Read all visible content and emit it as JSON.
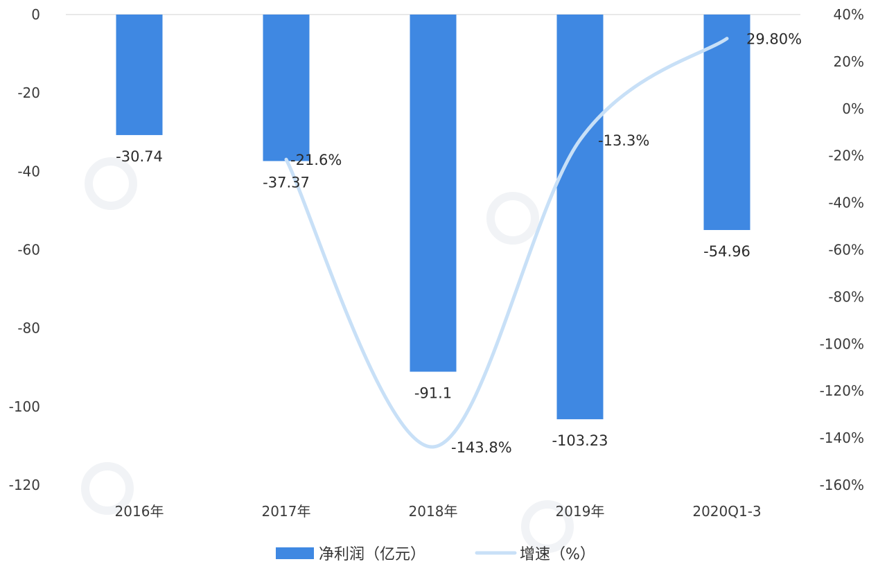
{
  "chart_data": {
    "type": "bar",
    "categories": [
      "2016年",
      "2017年",
      "2018年",
      "2019年",
      "2020Q1-3"
    ],
    "series": [
      {
        "name": "净利润（亿元）",
        "type": "bar",
        "axis": "left",
        "values": [
          -30.74,
          -37.37,
          -91.1,
          -103.23,
          -54.96
        ],
        "labels": [
          "-30.74",
          "-37.37",
          "-91.1",
          "-103.23",
          "-54.96"
        ],
        "color": "#3f88e2"
      },
      {
        "name": "增速（%）",
        "type": "line",
        "axis": "right",
        "values": [
          null,
          -21.6,
          -143.8,
          -13.3,
          29.8
        ],
        "labels": [
          "",
          "-21.6%",
          "-143.8%",
          "-13.3%",
          "29.80%"
        ],
        "color": "#c8e0f7"
      }
    ],
    "y_left": {
      "min": -120,
      "max": 0,
      "ticks": [
        "0",
        "-20",
        "-40",
        "-60",
        "-80",
        "-100",
        "-120"
      ]
    },
    "y_right": {
      "min": -160,
      "max": 40,
      "ticks": [
        "40%",
        "20%",
        "0%",
        "-20%",
        "-40%",
        "-60%",
        "-80%",
        "-100%",
        "-120%",
        "-140%",
        "-160%"
      ]
    },
    "grid": false,
    "legend": {
      "position": "bottom"
    }
  }
}
